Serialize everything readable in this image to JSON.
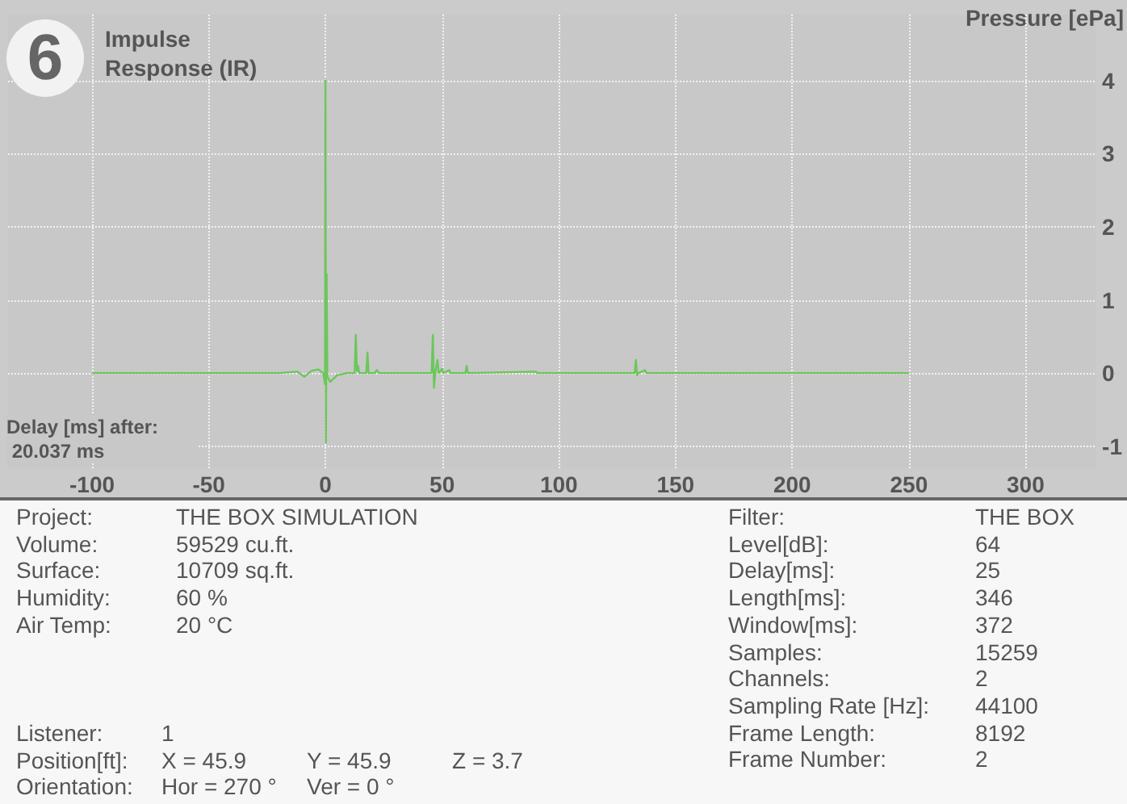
{
  "chart_data": [
    {
      "type": "line",
      "title": "Impulse Response (IR)",
      "ylabel": "Pressure [ePa]",
      "annotations": [
        "6",
        "Delay [ms] after: 20.037 ms"
      ],
      "x": [
        -100,
        -20,
        -12,
        -9,
        -6,
        -3,
        -1,
        -0.2,
        0,
        0.2,
        0.5,
        0.8,
        2,
        5,
        9,
        12.5,
        13,
        13.5,
        14,
        14.5,
        17.5,
        18,
        18.5,
        21,
        22,
        23,
        45.5,
        46,
        46.5,
        47,
        48,
        48.5,
        50,
        50.5,
        53,
        53.5,
        60,
        60.5,
        61,
        90,
        91,
        132.5,
        133,
        133.5,
        134,
        137,
        137.5,
        250
      ],
      "values": [
        0,
        0,
        0.02,
        -0.05,
        0.03,
        0.05,
        0,
        -0.15,
        4.0,
        -0.95,
        1.35,
        -0.05,
        -0.12,
        -0.03,
        0,
        0,
        0.52,
        0.03,
        0.1,
        0,
        0,
        0.28,
        0,
        0,
        0.04,
        0,
        0,
        0.52,
        -0.2,
        0,
        0.18,
        0,
        0.06,
        0,
        0.04,
        0,
        0,
        0.1,
        0,
        0.02,
        0,
        0,
        0.18,
        -0.03,
        0,
        0.04,
        0,
        0
      ],
      "color": "#6cc65a",
      "marker": "none",
      "xlim": [
        -136,
        330
      ],
      "ylim": [
        -1.3,
        4.9
      ],
      "xticks": [
        -100,
        -50,
        0,
        50,
        100,
        150,
        200,
        250,
        300
      ],
      "yticks": [
        -1,
        0,
        1,
        2,
        3,
        4
      ],
      "grid": true
    },
    {
      "type": "other",
      "annotations": [
        "Project:\tTHE BOX SIMULATION",
        "Volume:\t59529 cu.ft.",
        "Surface:\t10709 sq.ft.",
        "Humidity:\t60 %",
        "Air Temp:\t20 °C"
      ]
    },
    {
      "type": "other",
      "annotations": [
        "Listener:\t1",
        "Position[ft]:\tX = 45.9\tY = 45.9\tZ = 3.7",
        "Orientation:\tHor = 270 °\tVer = 0 °"
      ]
    },
    {
      "type": "other",
      "annotations": [
        "Filter:\tTHE BOX",
        "Level[dB]:\t64",
        "Delay[ms]:\t25",
        "Length[ms]:\t346",
        "Window[ms]:\t372",
        "Samples:\t15259",
        "Channels:\t2",
        "Sampling Rate [Hz]:\t44100",
        "Frame Length:\t8192",
        "Frame Number:\t2"
      ]
    }
  ]
}
